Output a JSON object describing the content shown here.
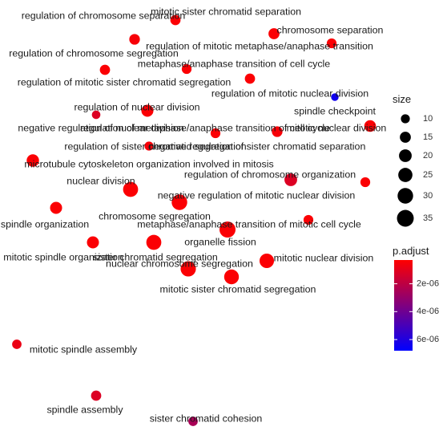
{
  "chart_data": {
    "type": "scatter",
    "title": "",
    "xlabel": "",
    "ylabel": "",
    "grid": false,
    "legend_placement": "right",
    "points": [
      {
        "label": "regulation of chromosome separation",
        "size": 14,
        "p_adjust": 5e-07
      },
      {
        "label": "mitotic sister chromatid separation",
        "size": 13,
        "p_adjust": 4e-07
      },
      {
        "label": "chromosome separation",
        "size": 15,
        "p_adjust": 4e-07
      },
      {
        "label": "regulation of mitotic metaphase/anaphase transition",
        "size": 12,
        "p_adjust": 4e-07
      },
      {
        "label": "regulation of chromosome segregation",
        "size": 13,
        "p_adjust": 4e-07
      },
      {
        "label": "metaphase/anaphase transition of cell cycle",
        "size": 12,
        "p_adjust": 4e-07
      },
      {
        "label": "regulation of mitotic sister chromatid segregation",
        "size": 13,
        "p_adjust": 4e-07
      },
      {
        "label": "regulation of mitotic nuclear division",
        "size": 17,
        "p_adjust": 4e-07
      },
      {
        "label": "spindle checkpoint",
        "size": 7,
        "p_adjust": 6.4e-06
      },
      {
        "label": "regulation of nuclear division",
        "size": 18,
        "p_adjust": 4e-07
      },
      {
        "label": "negative regulation of nuclear division",
        "size": 9,
        "p_adjust": 1.2e-06
      },
      {
        "label": "regulation of metaphase/anaphase transition of cell cycle",
        "size": 12,
        "p_adjust": 4e-07
      },
      {
        "label": "negative regulation of sister chromatid separation",
        "size": 14,
        "p_adjust": 5e-07
      },
      {
        "label": "regulation of sister chromatid segregation",
        "size": 10,
        "p_adjust": 5e-07
      },
      {
        "label": "mitotic nuclear division",
        "size": 12,
        "p_adjust": 4e-07
      },
      {
        "label": "microtubule cytoskeleton organization involved in mitosis",
        "size": 19,
        "p_adjust": 4e-07
      },
      {
        "label": "nuclear division",
        "size": 28,
        "p_adjust": 4e-07
      },
      {
        "label": "regulation of chromosome organization",
        "size": 20,
        "p_adjust": 1.2e-06
      },
      {
        "label": "negative regulation of mitotic nuclear division",
        "size": 11,
        "p_adjust": 4e-07
      },
      {
        "label": "chromosome segregation",
        "size": 30,
        "p_adjust": 4e-07
      },
      {
        "label": "spindle organization",
        "size": 18,
        "p_adjust": 4e-07
      },
      {
        "label": "metaphase/anaphase transition of mitotic cell cycle",
        "size": 12,
        "p_adjust": 4e-07
      },
      {
        "label": "organelle fission",
        "size": 32,
        "p_adjust": 4e-07
      },
      {
        "label": "mitotic spindle organization",
        "size": 18,
        "p_adjust": 4e-07
      },
      {
        "label": "sister chromatid segregation",
        "size": 28,
        "p_adjust": 4e-07
      },
      {
        "label": "mitotic nuclear division",
        "size": 26,
        "p_adjust": 4e-07
      },
      {
        "label": "nuclear chromosome segregation",
        "size": 29,
        "p_adjust": 4e-07
      },
      {
        "label": "mitotic sister chromatid segregation",
        "size": 27,
        "p_adjust": 4e-07
      },
      {
        "label": "mitotic spindle assembly",
        "size": 11,
        "p_adjust": 8e-07
      },
      {
        "label": "spindle assembly",
        "size": 13,
        "p_adjust": 1.2e-06
      },
      {
        "label": "sister chromatid cohesion",
        "size": 11,
        "p_adjust": 2.5e-06
      }
    ],
    "legend_size": {
      "title": "size",
      "breaks": [
        10,
        15,
        20,
        25,
        30,
        35
      ]
    },
    "legend_color": {
      "title": "p.adjust",
      "min_value": 3e-07,
      "max_value": 6.8e-06,
      "low_color": "#ff0000",
      "high_color": "#0000ff",
      "tick_values": [
        2e-06,
        4e-06,
        6e-06
      ],
      "tick_labels": [
        "2e-06",
        "4e-06",
        "6e-06"
      ]
    }
  }
}
